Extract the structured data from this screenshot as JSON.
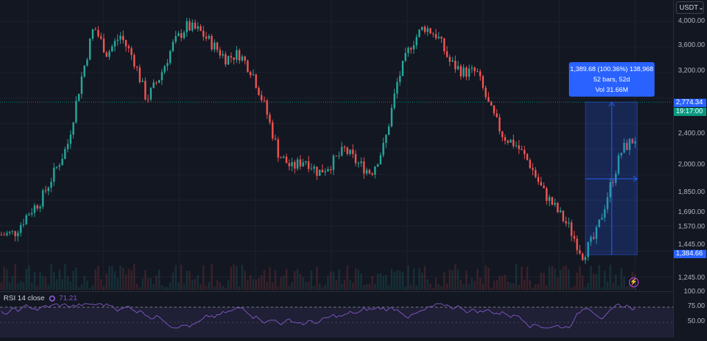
{
  "currency": {
    "label": "USDT",
    "chevron": "chevron-down-icon"
  },
  "price_axis": {
    "ticks": [
      "4,000.00",
      "3,600.00",
      "3,200.00",
      "2,774.34",
      "2,400.00",
      "2,000.00",
      "1,850.00",
      "1,690.00",
      "1,570.00",
      "1,445.00",
      "1,384.66",
      "1,245.00"
    ],
    "last_price": "2,774.34",
    "countdown": "19:17:00",
    "range_low": "1,384.66"
  },
  "measure": {
    "line1": "1,389.68 (100.36%) 138,968",
    "line2": "52 bars, 52d",
    "line3": "Vol 31.66M"
  },
  "rsi": {
    "title": "RSI 14 close",
    "value": "71.21",
    "ticks": [
      "100.00",
      "75.00",
      "50.00"
    ]
  },
  "colors": {
    "up": "#26a69a",
    "down": "#ef5350",
    "accent": "#2962ff",
    "rsi": "#7e57c2",
    "last": "#089981"
  },
  "chart_data": {
    "type": "candlestick",
    "series": [
      {
        "name": "",
        "values": [
          1720,
          1740,
          1950,
          2100,
          2400,
          2700,
          3400,
          4000,
          3700,
          3900,
          3650,
          3200,
          3450,
          3800,
          4000,
          3950,
          3800,
          3650,
          3700,
          3500,
          3100,
          2600,
          2450,
          2550,
          2400,
          2500,
          2650,
          2500,
          2400,
          2700,
          3400,
          3800,
          4000,
          3900,
          3600,
          3500,
          3500,
          3100,
          2800,
          2700,
          2500,
          2200,
          2000,
          1800,
          1500,
          1700,
          2200,
          2650,
          2774
        ]
      }
    ],
    "ylim": [
      1245,
      4100
    ]
  }
}
